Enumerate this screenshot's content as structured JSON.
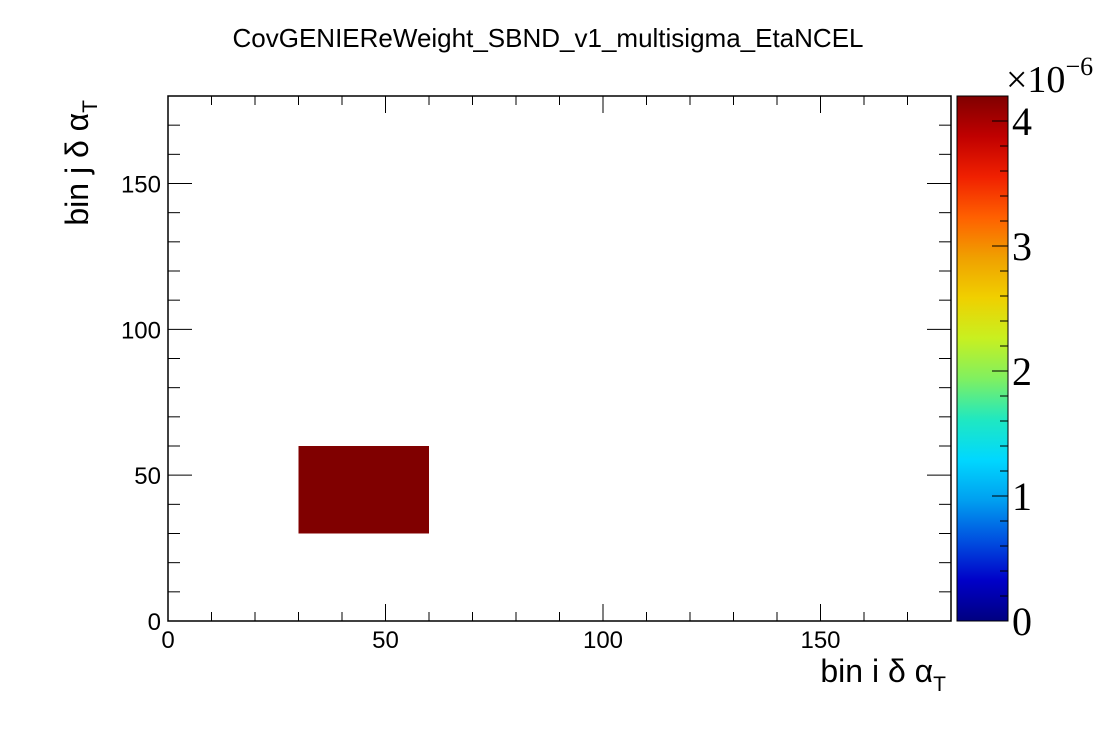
{
  "chart_data": {
    "type": "heatmap",
    "title": "CovGENIEReWeight_SBND_v1_multisigma_EtaNCEL",
    "xlabel": "bin i δ α",
    "xlabel_sub": "T",
    "ylabel": "bin j δ α",
    "ylabel_sub": "T",
    "xlim": [
      0,
      180
    ],
    "ylim": [
      0,
      180
    ],
    "x_ticks": [
      0,
      50,
      100,
      150
    ],
    "y_ticks": [
      0,
      50,
      100,
      150
    ],
    "x_tick_labels": [
      "0",
      "50",
      "100",
      "150"
    ],
    "y_tick_labels": [
      "0",
      "50",
      "100",
      "150"
    ],
    "cells": [
      {
        "x0": 30,
        "x1": 60,
        "y0": 30,
        "y1": 60,
        "value": 4.2
      }
    ],
    "colorbar": {
      "min": 0,
      "max": 4.2,
      "ticks": [
        0,
        1,
        2,
        3,
        4
      ],
      "tick_labels": [
        "0",
        "1",
        "2",
        "3",
        "4"
      ],
      "multiplier_base": "×10",
      "multiplier_exp": "−6",
      "palette": [
        "#000080",
        "#0000c8",
        "#0050e0",
        "#00a0f0",
        "#00d8ff",
        "#20e8c0",
        "#80f060",
        "#c8f020",
        "#f0d000",
        "#f0a000",
        "#ff6000",
        "#f02000",
        "#c00000",
        "#800000"
      ]
    }
  }
}
